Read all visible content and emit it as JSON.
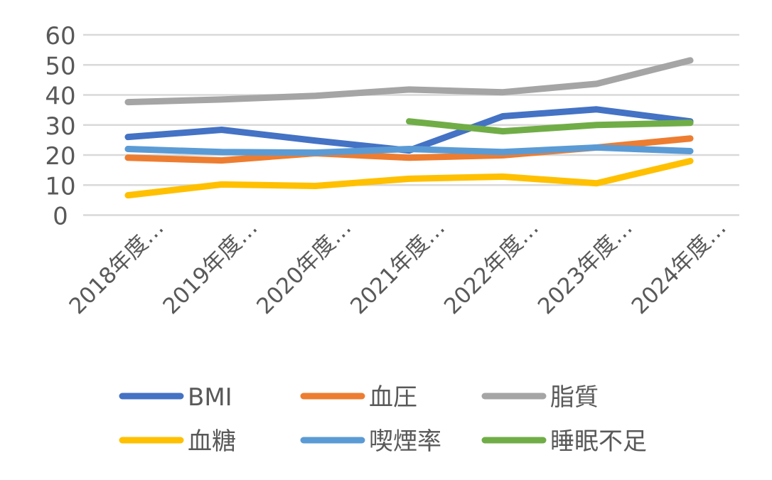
{
  "chart_data": {
    "type": "line",
    "title": "",
    "xlabel": "",
    "ylabel": "",
    "ylim": [
      0,
      60
    ],
    "yticks": [
      0,
      10,
      20,
      30,
      40,
      50,
      60
    ],
    "grid": true,
    "legend_position": "bottom",
    "categories": [
      "2018年度…",
      "2019年度…",
      "2020年度…",
      "2021年度…",
      "2022年度…",
      "2023年度…",
      "2024年度…"
    ],
    "series": [
      {
        "name": "BMI",
        "color": "#4472C4",
        "values": [
          26.0,
          28.4,
          24.8,
          21.5,
          32.9,
          35.2,
          31.2
        ]
      },
      {
        "name": "血圧",
        "color": "#ED7D31",
        "values": [
          19.1,
          18.2,
          20.6,
          19.1,
          19.9,
          22.5,
          25.5
        ]
      },
      {
        "name": "脂質",
        "color": "#A5A5A5",
        "values": [
          37.6,
          38.5,
          39.7,
          41.8,
          40.9,
          43.7,
          51.5
        ]
      },
      {
        "name": "血糖",
        "color": "#FFC000",
        "values": [
          6.6,
          10.2,
          9.7,
          12.1,
          12.8,
          10.6,
          18.0
        ]
      },
      {
        "name": "喫煙率",
        "color": "#5B9BD5",
        "values": [
          22.0,
          21.0,
          20.8,
          22.0,
          21.0,
          22.5,
          21.3
        ]
      },
      {
        "name": "睡眠不足",
        "color": "#70AD47",
        "values": [
          null,
          null,
          null,
          31.2,
          27.9,
          30.0,
          30.7
        ]
      }
    ]
  }
}
